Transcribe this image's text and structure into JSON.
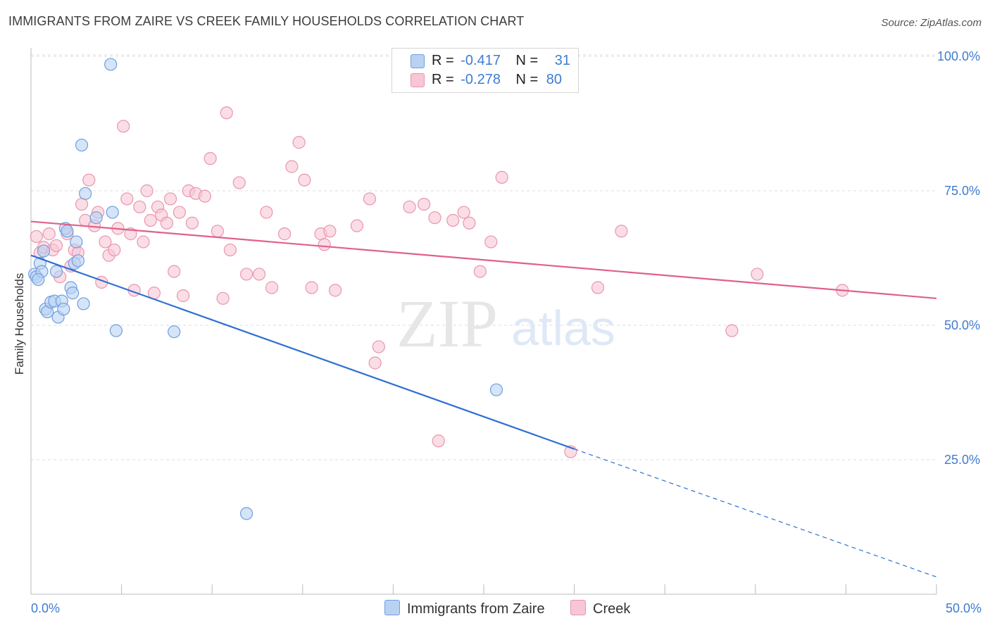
{
  "title": "IMMIGRANTS FROM ZAIRE VS CREEK FAMILY HOUSEHOLDS CORRELATION CHART",
  "source": "Source: ZipAtlas.com",
  "watermark": {
    "zip": "ZIP",
    "atlas": "atlas"
  },
  "legend": {
    "rows": [
      {
        "r_label": "R =",
        "r_value": "-0.417",
        "n_label": "N =",
        "n_value": "31"
      },
      {
        "r_label": "R =",
        "r_value": "-0.278",
        "n_label": "N =",
        "n_value": "80"
      }
    ]
  },
  "colors": {
    "series1_fill": "#b9d2f2",
    "series1_stroke": "#6f9fe0",
    "series1_line": "#2f6fd4",
    "series2_fill": "#f8c6d4",
    "series2_stroke": "#e896b0",
    "series2_line": "#e0608c",
    "axis_label": "#3f7bd1",
    "grid": "#dddddd"
  },
  "chart_data": {
    "type": "scatter",
    "title": "IMMIGRANTS FROM ZAIRE VS CREEK FAMILY HOUSEHOLDS CORRELATION CHART",
    "xlabel": "",
    "ylabel": "Family Households",
    "xlim": [
      0,
      50
    ],
    "ylim": [
      0,
      105
    ],
    "x_ticks": [
      "0.0%",
      "50.0%"
    ],
    "y_ticks": [
      {
        "value": 25,
        "label": "25.0%"
      },
      {
        "value": 50,
        "label": "50.0%"
      },
      {
        "value": 75,
        "label": "75.0%"
      },
      {
        "value": 100,
        "label": "100.0%"
      }
    ],
    "grid": true,
    "legend_position": "top-center",
    "series": [
      {
        "name": "Immigrants from Zaire",
        "trend": {
          "x0": 0.0,
          "y0": 63.0,
          "x1": 30.0,
          "y1": 27.0,
          "dashed_to_x": 50.0,
          "dashed_to_y": 3.2
        },
        "points": [
          [
            0.2,
            59.5
          ],
          [
            0.3,
            59.0
          ],
          [
            0.5,
            61.5
          ],
          [
            0.6,
            60.0
          ],
          [
            0.7,
            63.8
          ],
          [
            0.8,
            53.0
          ],
          [
            0.9,
            52.5
          ],
          [
            1.1,
            54.3
          ],
          [
            1.3,
            54.5
          ],
          [
            1.4,
            60.0
          ],
          [
            1.5,
            51.5
          ],
          [
            1.7,
            54.5
          ],
          [
            1.8,
            53.0
          ],
          [
            1.9,
            68.0
          ],
          [
            2.0,
            67.5
          ],
          [
            2.2,
            57.0
          ],
          [
            2.3,
            56.0
          ],
          [
            2.4,
            61.5
          ],
          [
            2.5,
            65.5
          ],
          [
            2.6,
            62.0
          ],
          [
            2.8,
            83.5
          ],
          [
            2.9,
            54.0
          ],
          [
            3.0,
            74.5
          ],
          [
            3.6,
            70.0
          ],
          [
            4.4,
            98.5
          ],
          [
            4.5,
            71.0
          ],
          [
            4.7,
            49.0
          ],
          [
            7.9,
            48.8
          ],
          [
            11.9,
            15.0
          ],
          [
            25.7,
            38.0
          ],
          [
            0.4,
            58.5
          ]
        ]
      },
      {
        "name": "Creek",
        "trend": {
          "x0": 0.0,
          "y0": 69.3,
          "x1": 50.0,
          "y1": 55.0
        },
        "points": [
          [
            0.3,
            66.5
          ],
          [
            0.5,
            63.5
          ],
          [
            0.7,
            64.5
          ],
          [
            1.0,
            67.0
          ],
          [
            1.2,
            64.0
          ],
          [
            1.4,
            64.8
          ],
          [
            1.6,
            59.0
          ],
          [
            2.0,
            67.0
          ],
          [
            2.2,
            61.0
          ],
          [
            2.4,
            64.0
          ],
          [
            2.6,
            63.5
          ],
          [
            2.8,
            72.5
          ],
          [
            3.0,
            69.5
          ],
          [
            3.2,
            77.0
          ],
          [
            3.5,
            68.5
          ],
          [
            3.7,
            71.0
          ],
          [
            3.9,
            58.0
          ],
          [
            4.1,
            65.5
          ],
          [
            4.3,
            63.0
          ],
          [
            4.6,
            64.0
          ],
          [
            4.8,
            68.0
          ],
          [
            5.1,
            87.0
          ],
          [
            5.3,
            73.5
          ],
          [
            5.5,
            67.0
          ],
          [
            5.7,
            56.5
          ],
          [
            6.0,
            72.0
          ],
          [
            6.2,
            65.5
          ],
          [
            6.4,
            75.0
          ],
          [
            6.6,
            69.5
          ],
          [
            6.8,
            56.0
          ],
          [
            7.0,
            72.0
          ],
          [
            7.2,
            70.5
          ],
          [
            7.5,
            69.0
          ],
          [
            7.7,
            73.5
          ],
          [
            7.9,
            60.0
          ],
          [
            8.2,
            71.0
          ],
          [
            8.4,
            55.5
          ],
          [
            8.7,
            75.0
          ],
          [
            8.9,
            69.0
          ],
          [
            9.1,
            74.5
          ],
          [
            9.6,
            74.0
          ],
          [
            9.9,
            81.0
          ],
          [
            10.3,
            67.5
          ],
          [
            10.6,
            55.0
          ],
          [
            10.8,
            89.5
          ],
          [
            11.0,
            64.0
          ],
          [
            11.5,
            76.5
          ],
          [
            11.9,
            59.5
          ],
          [
            12.6,
            59.5
          ],
          [
            13.0,
            71.0
          ],
          [
            13.3,
            57.0
          ],
          [
            14.0,
            67.0
          ],
          [
            14.4,
            79.5
          ],
          [
            14.8,
            84.0
          ],
          [
            15.1,
            77.0
          ],
          [
            15.5,
            57.0
          ],
          [
            16.0,
            67.0
          ],
          [
            16.2,
            65.0
          ],
          [
            16.5,
            67.5
          ],
          [
            16.8,
            56.5
          ],
          [
            18.0,
            68.5
          ],
          [
            18.7,
            73.5
          ],
          [
            19.0,
            43.0
          ],
          [
            19.2,
            46.0
          ],
          [
            20.9,
            72.0
          ],
          [
            21.7,
            72.5
          ],
          [
            22.3,
            70.0
          ],
          [
            22.5,
            28.5
          ],
          [
            23.3,
            69.5
          ],
          [
            23.9,
            71.0
          ],
          [
            24.2,
            69.0
          ],
          [
            24.8,
            60.0
          ],
          [
            25.4,
            65.5
          ],
          [
            26.0,
            77.5
          ],
          [
            29.8,
            26.5
          ],
          [
            31.3,
            57.0
          ],
          [
            32.6,
            67.5
          ],
          [
            38.7,
            49.0
          ],
          [
            40.1,
            59.5
          ],
          [
            44.8,
            56.5
          ]
        ]
      }
    ]
  }
}
